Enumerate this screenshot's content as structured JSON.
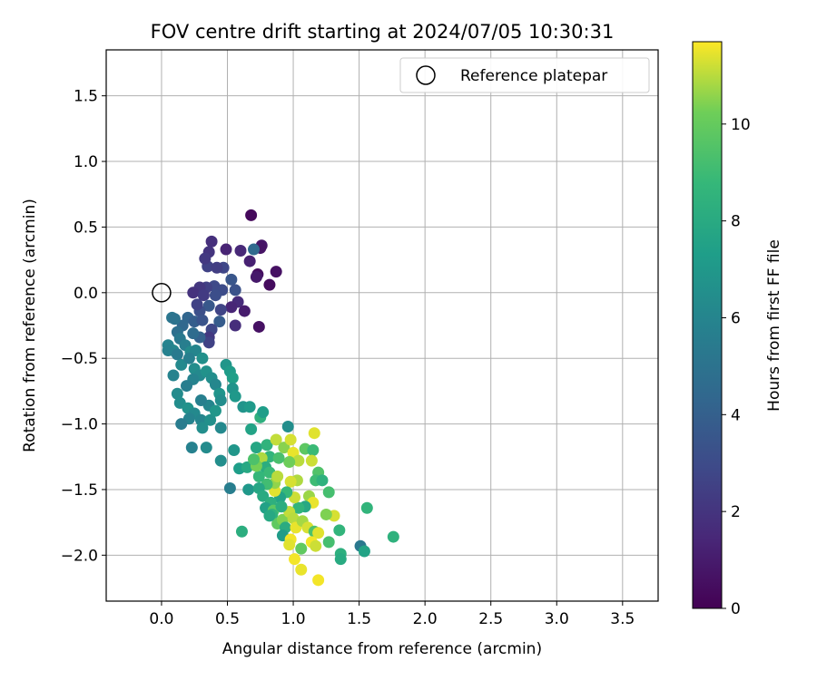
{
  "chart_data": {
    "type": "scatter",
    "title": "FOV centre drift starting at 2024/07/05 10:30:31",
    "xlabel": "Angular distance from reference (arcmin)",
    "ylabel": "Rotation from reference (arcmin)",
    "xlim": [
      -0.42,
      3.77
    ],
    "ylim": [
      -2.35,
      1.85
    ],
    "xticks": [
      0.0,
      0.5,
      1.0,
      1.5,
      2.0,
      2.5,
      3.0,
      3.5
    ],
    "xtick_labels": [
      "0.0",
      "0.5",
      "1.0",
      "1.5",
      "2.0",
      "2.5",
      "3.0",
      "3.5"
    ],
    "yticks": [
      1.5,
      1.0,
      0.5,
      0.0,
      -0.5,
      -1.0,
      -1.5,
      -2.0
    ],
    "ytick_labels": [
      "1.5",
      "1.0",
      "0.5",
      "0.0",
      "−0.5",
      "−1.0",
      "−1.5",
      "−2.0"
    ],
    "grid": true,
    "legend": {
      "position": "top-right",
      "entries": [
        {
          "label": "Reference platepar",
          "marker": "open-circle"
        }
      ]
    },
    "reference_point": {
      "x": 0.0,
      "y": 0.0
    },
    "colorbar": {
      "label": "Hours from first FF file",
      "colormap": "viridis",
      "range": [
        0,
        11.7
      ],
      "ticks": [
        0,
        2,
        4,
        6,
        8,
        10
      ],
      "tick_labels": [
        "0",
        "2",
        "4",
        "6",
        "8",
        "10"
      ]
    },
    "points": [
      {
        "x": 0.68,
        "y": 0.59,
        "c": 0.3
      },
      {
        "x": 0.76,
        "y": 0.36,
        "c": 0.8
      },
      {
        "x": 0.75,
        "y": 0.34,
        "c": 0.7
      },
      {
        "x": 0.87,
        "y": 0.16,
        "c": 0.6
      },
      {
        "x": 0.73,
        "y": 0.14,
        "c": 0.5
      },
      {
        "x": 0.72,
        "y": 0.12,
        "c": 0.9
      },
      {
        "x": 0.82,
        "y": 0.06,
        "c": 0.4
      },
      {
        "x": 0.67,
        "y": 0.24,
        "c": 1.2
      },
      {
        "x": 0.6,
        "y": 0.32,
        "c": 1.5
      },
      {
        "x": 0.49,
        "y": 0.33,
        "c": 1.3
      },
      {
        "x": 0.38,
        "y": 0.39,
        "c": 1.8
      },
      {
        "x": 0.36,
        "y": 0.31,
        "c": 2.0
      },
      {
        "x": 0.35,
        "y": 0.2,
        "c": 2.6
      },
      {
        "x": 0.33,
        "y": 0.26,
        "c": 2.2
      },
      {
        "x": 0.47,
        "y": 0.19,
        "c": 2.8
      },
      {
        "x": 0.42,
        "y": 0.19,
        "c": 2.4
      },
      {
        "x": 0.7,
        "y": 0.33,
        "c": 4.5
      },
      {
        "x": 0.53,
        "y": 0.1,
        "c": 3.5
      },
      {
        "x": 0.56,
        "y": 0.02,
        "c": 3.3
      },
      {
        "x": 0.46,
        "y": 0.02,
        "c": 3.0
      },
      {
        "x": 0.4,
        "y": 0.05,
        "c": 2.9
      },
      {
        "x": 0.34,
        "y": 0.04,
        "c": 2.5
      },
      {
        "x": 0.29,
        "y": 0.04,
        "c": 2.1
      },
      {
        "x": 0.24,
        "y": 0.0,
        "c": 1.9
      },
      {
        "x": 0.32,
        "y": -0.02,
        "c": 2.3
      },
      {
        "x": 0.41,
        "y": -0.02,
        "c": 3.1
      },
      {
        "x": 0.58,
        "y": -0.07,
        "c": 1.6
      },
      {
        "x": 0.53,
        "y": -0.11,
        "c": 1.4
      },
      {
        "x": 0.63,
        "y": -0.14,
        "c": 1.0
      },
      {
        "x": 0.74,
        "y": -0.26,
        "c": 0.6
      },
      {
        "x": 0.56,
        "y": -0.25,
        "c": 1.7
      },
      {
        "x": 0.45,
        "y": -0.13,
        "c": 2.7
      },
      {
        "x": 0.44,
        "y": -0.22,
        "c": 3.8
      },
      {
        "x": 0.36,
        "y": -0.1,
        "c": 3.6
      },
      {
        "x": 0.29,
        "y": -0.14,
        "c": 3.2
      },
      {
        "x": 0.27,
        "y": -0.09,
        "c": 2.6
      },
      {
        "x": 0.2,
        "y": -0.19,
        "c": 4.3
      },
      {
        "x": 0.25,
        "y": -0.22,
        "c": 3.9
      },
      {
        "x": 0.31,
        "y": -0.21,
        "c": 3.4
      },
      {
        "x": 0.38,
        "y": -0.28,
        "c": 2.8
      },
      {
        "x": 0.36,
        "y": -0.34,
        "c": 2.2
      },
      {
        "x": 0.36,
        "y": -0.38,
        "c": 2.6
      },
      {
        "x": 0.29,
        "y": -0.34,
        "c": 4.1
      },
      {
        "x": 0.24,
        "y": -0.31,
        "c": 4.6
      },
      {
        "x": 0.16,
        "y": -0.25,
        "c": 4.4
      },
      {
        "x": 0.12,
        "y": -0.3,
        "c": 4.8
      },
      {
        "x": 0.08,
        "y": -0.19,
        "c": 5.2
      },
      {
        "x": 0.1,
        "y": -0.2,
        "c": 5.0
      },
      {
        "x": 0.14,
        "y": -0.35,
        "c": 5.3
      },
      {
        "x": 0.18,
        "y": -0.4,
        "c": 5.6
      },
      {
        "x": 0.05,
        "y": -0.4,
        "c": 5.9
      },
      {
        "x": 0.09,
        "y": -0.44,
        "c": 6.1
      },
      {
        "x": 0.05,
        "y": -0.44,
        "c": 5.8
      },
      {
        "x": 0.12,
        "y": -0.47,
        "c": 5.4
      },
      {
        "x": 0.22,
        "y": -0.45,
        "c": 6.3
      },
      {
        "x": 0.26,
        "y": -0.44,
        "c": 6.0
      },
      {
        "x": 0.15,
        "y": -0.55,
        "c": 6.2
      },
      {
        "x": 0.21,
        "y": -0.5,
        "c": 5.7
      },
      {
        "x": 0.31,
        "y": -0.5,
        "c": 6.6
      },
      {
        "x": 0.25,
        "y": -0.58,
        "c": 6.4
      },
      {
        "x": 0.29,
        "y": -0.63,
        "c": 6.2
      },
      {
        "x": 0.24,
        "y": -0.66,
        "c": 5.9
      },
      {
        "x": 0.34,
        "y": -0.6,
        "c": 6.7
      },
      {
        "x": 0.38,
        "y": -0.65,
        "c": 6.5
      },
      {
        "x": 0.41,
        "y": -0.7,
        "c": 6.1
      },
      {
        "x": 0.44,
        "y": -0.77,
        "c": 6.8
      },
      {
        "x": 0.49,
        "y": -0.55,
        "c": 6.9
      },
      {
        "x": 0.52,
        "y": -0.6,
        "c": 7.2
      },
      {
        "x": 0.54,
        "y": -0.65,
        "c": 7.4
      },
      {
        "x": 0.54,
        "y": -0.73,
        "c": 6.8
      },
      {
        "x": 0.56,
        "y": -0.79,
        "c": 7.0
      },
      {
        "x": 0.45,
        "y": -0.82,
        "c": 6.4
      },
      {
        "x": 0.36,
        "y": -0.86,
        "c": 6.0
      },
      {
        "x": 0.3,
        "y": -0.82,
        "c": 5.7
      },
      {
        "x": 0.19,
        "y": -0.71,
        "c": 5.6
      },
      {
        "x": 0.09,
        "y": -0.63,
        "c": 5.9
      },
      {
        "x": 0.12,
        "y": -0.77,
        "c": 6.3
      },
      {
        "x": 0.14,
        "y": -0.84,
        "c": 6.4
      },
      {
        "x": 0.2,
        "y": -0.88,
        "c": 6.7
      },
      {
        "x": 0.25,
        "y": -0.92,
        "c": 6.2
      },
      {
        "x": 0.3,
        "y": -0.97,
        "c": 6.0
      },
      {
        "x": 0.21,
        "y": -0.96,
        "c": 5.9
      },
      {
        "x": 0.15,
        "y": -1.0,
        "c": 5.5
      },
      {
        "x": 0.37,
        "y": -0.97,
        "c": 6.6
      },
      {
        "x": 0.41,
        "y": -0.9,
        "c": 6.9
      },
      {
        "x": 0.45,
        "y": -1.03,
        "c": 6.2
      },
      {
        "x": 0.31,
        "y": -1.03,
        "c": 6.5
      },
      {
        "x": 0.23,
        "y": -1.18,
        "c": 5.8
      },
      {
        "x": 0.34,
        "y": -1.18,
        "c": 6.3
      },
      {
        "x": 0.45,
        "y": -1.28,
        "c": 6.5
      },
      {
        "x": 0.55,
        "y": -1.2,
        "c": 6.9
      },
      {
        "x": 0.52,
        "y": -1.49,
        "c": 5.6
      },
      {
        "x": 0.59,
        "y": -1.34,
        "c": 7.3
      },
      {
        "x": 0.65,
        "y": -1.33,
        "c": 7.9
      },
      {
        "x": 0.66,
        "y": -1.5,
        "c": 7.0
      },
      {
        "x": 0.61,
        "y": -1.82,
        "c": 8.2
      },
      {
        "x": 0.62,
        "y": -0.87,
        "c": 6.8
      },
      {
        "x": 0.67,
        "y": -0.87,
        "c": 7.1
      },
      {
        "x": 0.75,
        "y": -0.95,
        "c": 8.3
      },
      {
        "x": 0.77,
        "y": -0.91,
        "c": 7.3
      },
      {
        "x": 0.68,
        "y": -1.04,
        "c": 7.6
      },
      {
        "x": 0.72,
        "y": -1.18,
        "c": 7.8
      },
      {
        "x": 0.8,
        "y": -1.16,
        "c": 8.5
      },
      {
        "x": 0.82,
        "y": -1.25,
        "c": 8.6
      },
      {
        "x": 0.76,
        "y": -1.26,
        "c": 10.9
      },
      {
        "x": 0.79,
        "y": -1.33,
        "c": 8.2
      },
      {
        "x": 0.87,
        "y": -1.12,
        "c": 11.1
      },
      {
        "x": 0.93,
        "y": -1.18,
        "c": 10.5
      },
      {
        "x": 0.98,
        "y": -1.12,
        "c": 11.3
      },
      {
        "x": 0.96,
        "y": -1.02,
        "c": 6.5
      },
      {
        "x": 1.0,
        "y": -1.22,
        "c": 11.5
      },
      {
        "x": 1.04,
        "y": -1.28,
        "c": 11.0
      },
      {
        "x": 0.97,
        "y": -1.29,
        "c": 10.2
      },
      {
        "x": 1.09,
        "y": -1.19,
        "c": 9.8
      },
      {
        "x": 1.15,
        "y": -1.2,
        "c": 8.9
      },
      {
        "x": 1.16,
        "y": -1.07,
        "c": 11.4
      },
      {
        "x": 1.14,
        "y": -1.28,
        "c": 11.2
      },
      {
        "x": 1.19,
        "y": -1.37,
        "c": 9.5
      },
      {
        "x": 1.17,
        "y": -1.43,
        "c": 9.0
      },
      {
        "x": 1.22,
        "y": -1.43,
        "c": 8.4
      },
      {
        "x": 1.27,
        "y": -1.52,
        "c": 9.2
      },
      {
        "x": 1.12,
        "y": -1.55,
        "c": 10.7
      },
      {
        "x": 1.15,
        "y": -1.6,
        "c": 11.5
      },
      {
        "x": 1.09,
        "y": -1.63,
        "c": 7.9
      },
      {
        "x": 1.04,
        "y": -1.64,
        "c": 8.6
      },
      {
        "x": 1.01,
        "y": -1.56,
        "c": 11.2
      },
      {
        "x": 1.03,
        "y": -1.43,
        "c": 10.9
      },
      {
        "x": 0.98,
        "y": -1.44,
        "c": 11.3
      },
      {
        "x": 0.95,
        "y": -1.52,
        "c": 8.8
      },
      {
        "x": 0.9,
        "y": -1.56,
        "c": 7.6
      },
      {
        "x": 0.86,
        "y": -1.51,
        "c": 11.4
      },
      {
        "x": 0.86,
        "y": -1.45,
        "c": 10.6
      },
      {
        "x": 0.82,
        "y": -1.37,
        "c": 8.9
      },
      {
        "x": 0.8,
        "y": -1.46,
        "c": 9.1
      },
      {
        "x": 0.74,
        "y": -1.4,
        "c": 8.7
      },
      {
        "x": 0.72,
        "y": -1.32,
        "c": 10.3
      },
      {
        "x": 0.7,
        "y": -1.27,
        "c": 9.4
      },
      {
        "x": 0.74,
        "y": -1.49,
        "c": 7.8
      },
      {
        "x": 0.77,
        "y": -1.55,
        "c": 8.0
      },
      {
        "x": 0.83,
        "y": -1.6,
        "c": 8.3
      },
      {
        "x": 0.79,
        "y": -1.64,
        "c": 7.5
      },
      {
        "x": 0.85,
        "y": -1.66,
        "c": 9.8
      },
      {
        "x": 0.84,
        "y": -1.69,
        "c": 8.5
      },
      {
        "x": 0.88,
        "y": -1.76,
        "c": 9.9
      },
      {
        "x": 0.92,
        "y": -1.73,
        "c": 10.4
      },
      {
        "x": 0.97,
        "y": -1.67,
        "c": 11.1
      },
      {
        "x": 1.0,
        "y": -1.72,
        "c": 11.0
      },
      {
        "x": 0.94,
        "y": -1.79,
        "c": 8.1
      },
      {
        "x": 0.92,
        "y": -1.85,
        "c": 7.2
      },
      {
        "x": 0.98,
        "y": -1.88,
        "c": 11.6
      },
      {
        "x": 1.02,
        "y": -1.79,
        "c": 11.5
      },
      {
        "x": 1.07,
        "y": -1.74,
        "c": 10.8
      },
      {
        "x": 1.11,
        "y": -1.79,
        "c": 11.3
      },
      {
        "x": 1.16,
        "y": -1.82,
        "c": 9.4
      },
      {
        "x": 1.19,
        "y": -1.83,
        "c": 11.4
      },
      {
        "x": 1.14,
        "y": -1.9,
        "c": 11.6
      },
      {
        "x": 1.17,
        "y": -1.93,
        "c": 11.2
      },
      {
        "x": 1.06,
        "y": -1.95,
        "c": 9.9
      },
      {
        "x": 0.97,
        "y": -1.92,
        "c": 11.4
      },
      {
        "x": 1.01,
        "y": -2.03,
        "c": 11.6
      },
      {
        "x": 1.06,
        "y": -2.11,
        "c": 11.5
      },
      {
        "x": 1.19,
        "y": -2.19,
        "c": 11.6
      },
      {
        "x": 1.27,
        "y": -1.9,
        "c": 9.2
      },
      {
        "x": 1.31,
        "y": -1.7,
        "c": 11.3
      },
      {
        "x": 1.25,
        "y": -1.69,
        "c": 10.4
      },
      {
        "x": 1.35,
        "y": -1.81,
        "c": 8.6
      },
      {
        "x": 1.36,
        "y": -1.99,
        "c": 8.3
      },
      {
        "x": 1.36,
        "y": -2.03,
        "c": 8.0
      },
      {
        "x": 1.51,
        "y": -1.93,
        "c": 5.3
      },
      {
        "x": 1.54,
        "y": -1.97,
        "c": 7.6
      },
      {
        "x": 1.56,
        "y": -1.64,
        "c": 8.6
      },
      {
        "x": 1.76,
        "y": -1.86,
        "c": 8.4
      },
      {
        "x": 0.82,
        "y": -1.7,
        "c": 7.9
      },
      {
        "x": 0.91,
        "y": -1.63,
        "c": 8.2
      },
      {
        "x": 0.89,
        "y": -1.26,
        "c": 9.3
      },
      {
        "x": 0.88,
        "y": -1.4,
        "c": 11.0
      }
    ]
  }
}
